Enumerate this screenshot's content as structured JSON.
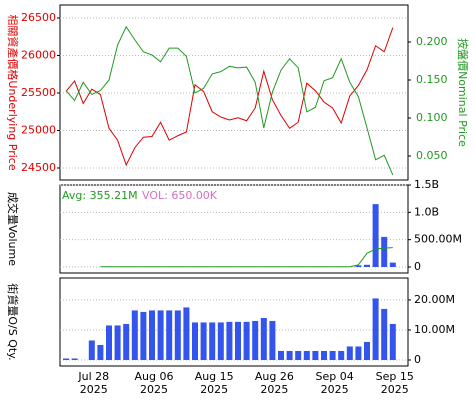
{
  "chart_data": [
    {
      "type": "line",
      "ylabel": "相關資產價格Underlying Price",
      "y2label": "按盤價Nominal Price",
      "ylim": [
        24340,
        26673
      ],
      "yticks": [
        24500,
        25000,
        25500,
        26000,
        26500
      ],
      "y2lim": [
        0.0184,
        0.2487
      ],
      "y2ticks": [
        {
          "value": 0.05,
          "label": "0.050"
        },
        {
          "value": 0.1,
          "label": "0.100"
        },
        {
          "value": 0.15,
          "label": "0.150"
        },
        {
          "value": 0.2,
          "label": "0.200"
        }
      ],
      "grid": true,
      "series": [
        {
          "color": "#dd0000",
          "values": [
            25520,
            25660,
            25360,
            25550,
            25480,
            25030,
            24870,
            24540,
            24770,
            24910,
            24920,
            25110,
            24870,
            24930,
            24980,
            25610,
            25520,
            25250,
            25180,
            25140,
            25170,
            25130,
            25300,
            25790,
            25410,
            25200,
            25030,
            25110,
            25630,
            25530,
            25380,
            25300,
            25100,
            25460,
            25600,
            25810,
            26130,
            26050,
            26370
          ]
        },
        {
          "color": "#229922",
          "axis": "y2",
          "values": [
            0.136,
            0.123,
            0.147,
            0.131,
            0.136,
            0.15,
            0.196,
            0.22,
            0.203,
            0.187,
            0.183,
            0.174,
            0.192,
            0.192,
            0.181,
            0.133,
            0.139,
            0.158,
            0.161,
            0.168,
            0.166,
            0.167,
            0.147,
            0.087,
            0.134,
            0.163,
            0.178,
            0.166,
            0.108,
            0.114,
            0.149,
            0.153,
            0.178,
            0.147,
            0.128,
            0.087,
            0.045,
            0.051,
            0.025
          ]
        }
      ]
    },
    {
      "type": "bar",
      "ylabel": "成交量Volume",
      "annotations": [
        "Avg: 355.21M",
        "VOL: 650.00K"
      ],
      "ylim": [
        -110000000,
        1500000000
      ],
      "yticks": [
        0,
        {
          "value": 500000000,
          "label": "500.00M"
        },
        {
          "value": 1000000000,
          "label": "1.0B"
        },
        {
          "value": 1500000000,
          "label": "1.5B"
        }
      ],
      "grid": true,
      "series": [
        {
          "type": "bar",
          "color": "#3355ee",
          "values": [
            1000000,
            1000000,
            1000000,
            1000000,
            1000000,
            1000000,
            1000000,
            1000000,
            1000000,
            1000000,
            1000000,
            1000000,
            1000000,
            1000000,
            1000000,
            1000000,
            1000000,
            1000000,
            1000000,
            1000000,
            1000000,
            1000000,
            1000000,
            1000000,
            1000000,
            1000000,
            1000000,
            1000000,
            1000000,
            1000000,
            1000000,
            1000000,
            1000000,
            1000000,
            30000000,
            40000000,
            1150000000,
            550000000,
            80000000
          ]
        },
        {
          "type": "line",
          "color": "#229922",
          "values": [
            null,
            null,
            null,
            null,
            4000000,
            4000000,
            4000000,
            4000000,
            4000000,
            4000000,
            4000000,
            4000000,
            4000000,
            4000000,
            4000000,
            4000000,
            4000000,
            4000000,
            4000000,
            4000000,
            4000000,
            4000000,
            4000000,
            4000000,
            4000000,
            4000000,
            4000000,
            4000000,
            4000000,
            4000000,
            4000000,
            4000000,
            4000000,
            5000000,
            40000000,
            250000000,
            330000000,
            345000000,
            355000000
          ]
        }
      ]
    },
    {
      "type": "bar",
      "ylabel": "街貨量O/S Qty.",
      "ylim": [
        -2000000,
        27300000
      ],
      "yticks": [
        0,
        {
          "value": 10000000,
          "label": "10.00M"
        },
        {
          "value": 20000000,
          "label": "20.00M"
        }
      ],
      "grid": true,
      "categories": [
        null,
        null,
        null,
        "Jul 28 2025",
        null,
        null,
        null,
        null,
        null,
        null,
        "Aug 06 2025",
        null,
        null,
        null,
        null,
        null,
        null,
        "Aug 15 2025",
        null,
        null,
        null,
        null,
        null,
        null,
        "Aug 26 2025",
        null,
        null,
        null,
        null,
        null,
        null,
        "Sep 04 2025",
        null,
        null,
        null,
        null,
        null,
        null,
        "Sep 15 2025"
      ],
      "series": [
        {
          "type": "bar",
          "color": "#3355ee",
          "values": [
            500000,
            500000,
            0,
            6500000,
            5000000,
            11500000,
            11500000,
            12000000,
            16500000,
            16000000,
            16500000,
            16500000,
            16500000,
            16500000,
            17500000,
            12500000,
            12500000,
            12500000,
            12500000,
            12700000,
            12700000,
            12700000,
            13000000,
            14000000,
            13000000,
            3000000,
            3000000,
            3000000,
            3000000,
            3000000,
            3000000,
            3000000,
            3000000,
            4500000,
            4500000,
            6000000,
            20500000,
            17000000,
            12000000
          ]
        }
      ]
    }
  ]
}
